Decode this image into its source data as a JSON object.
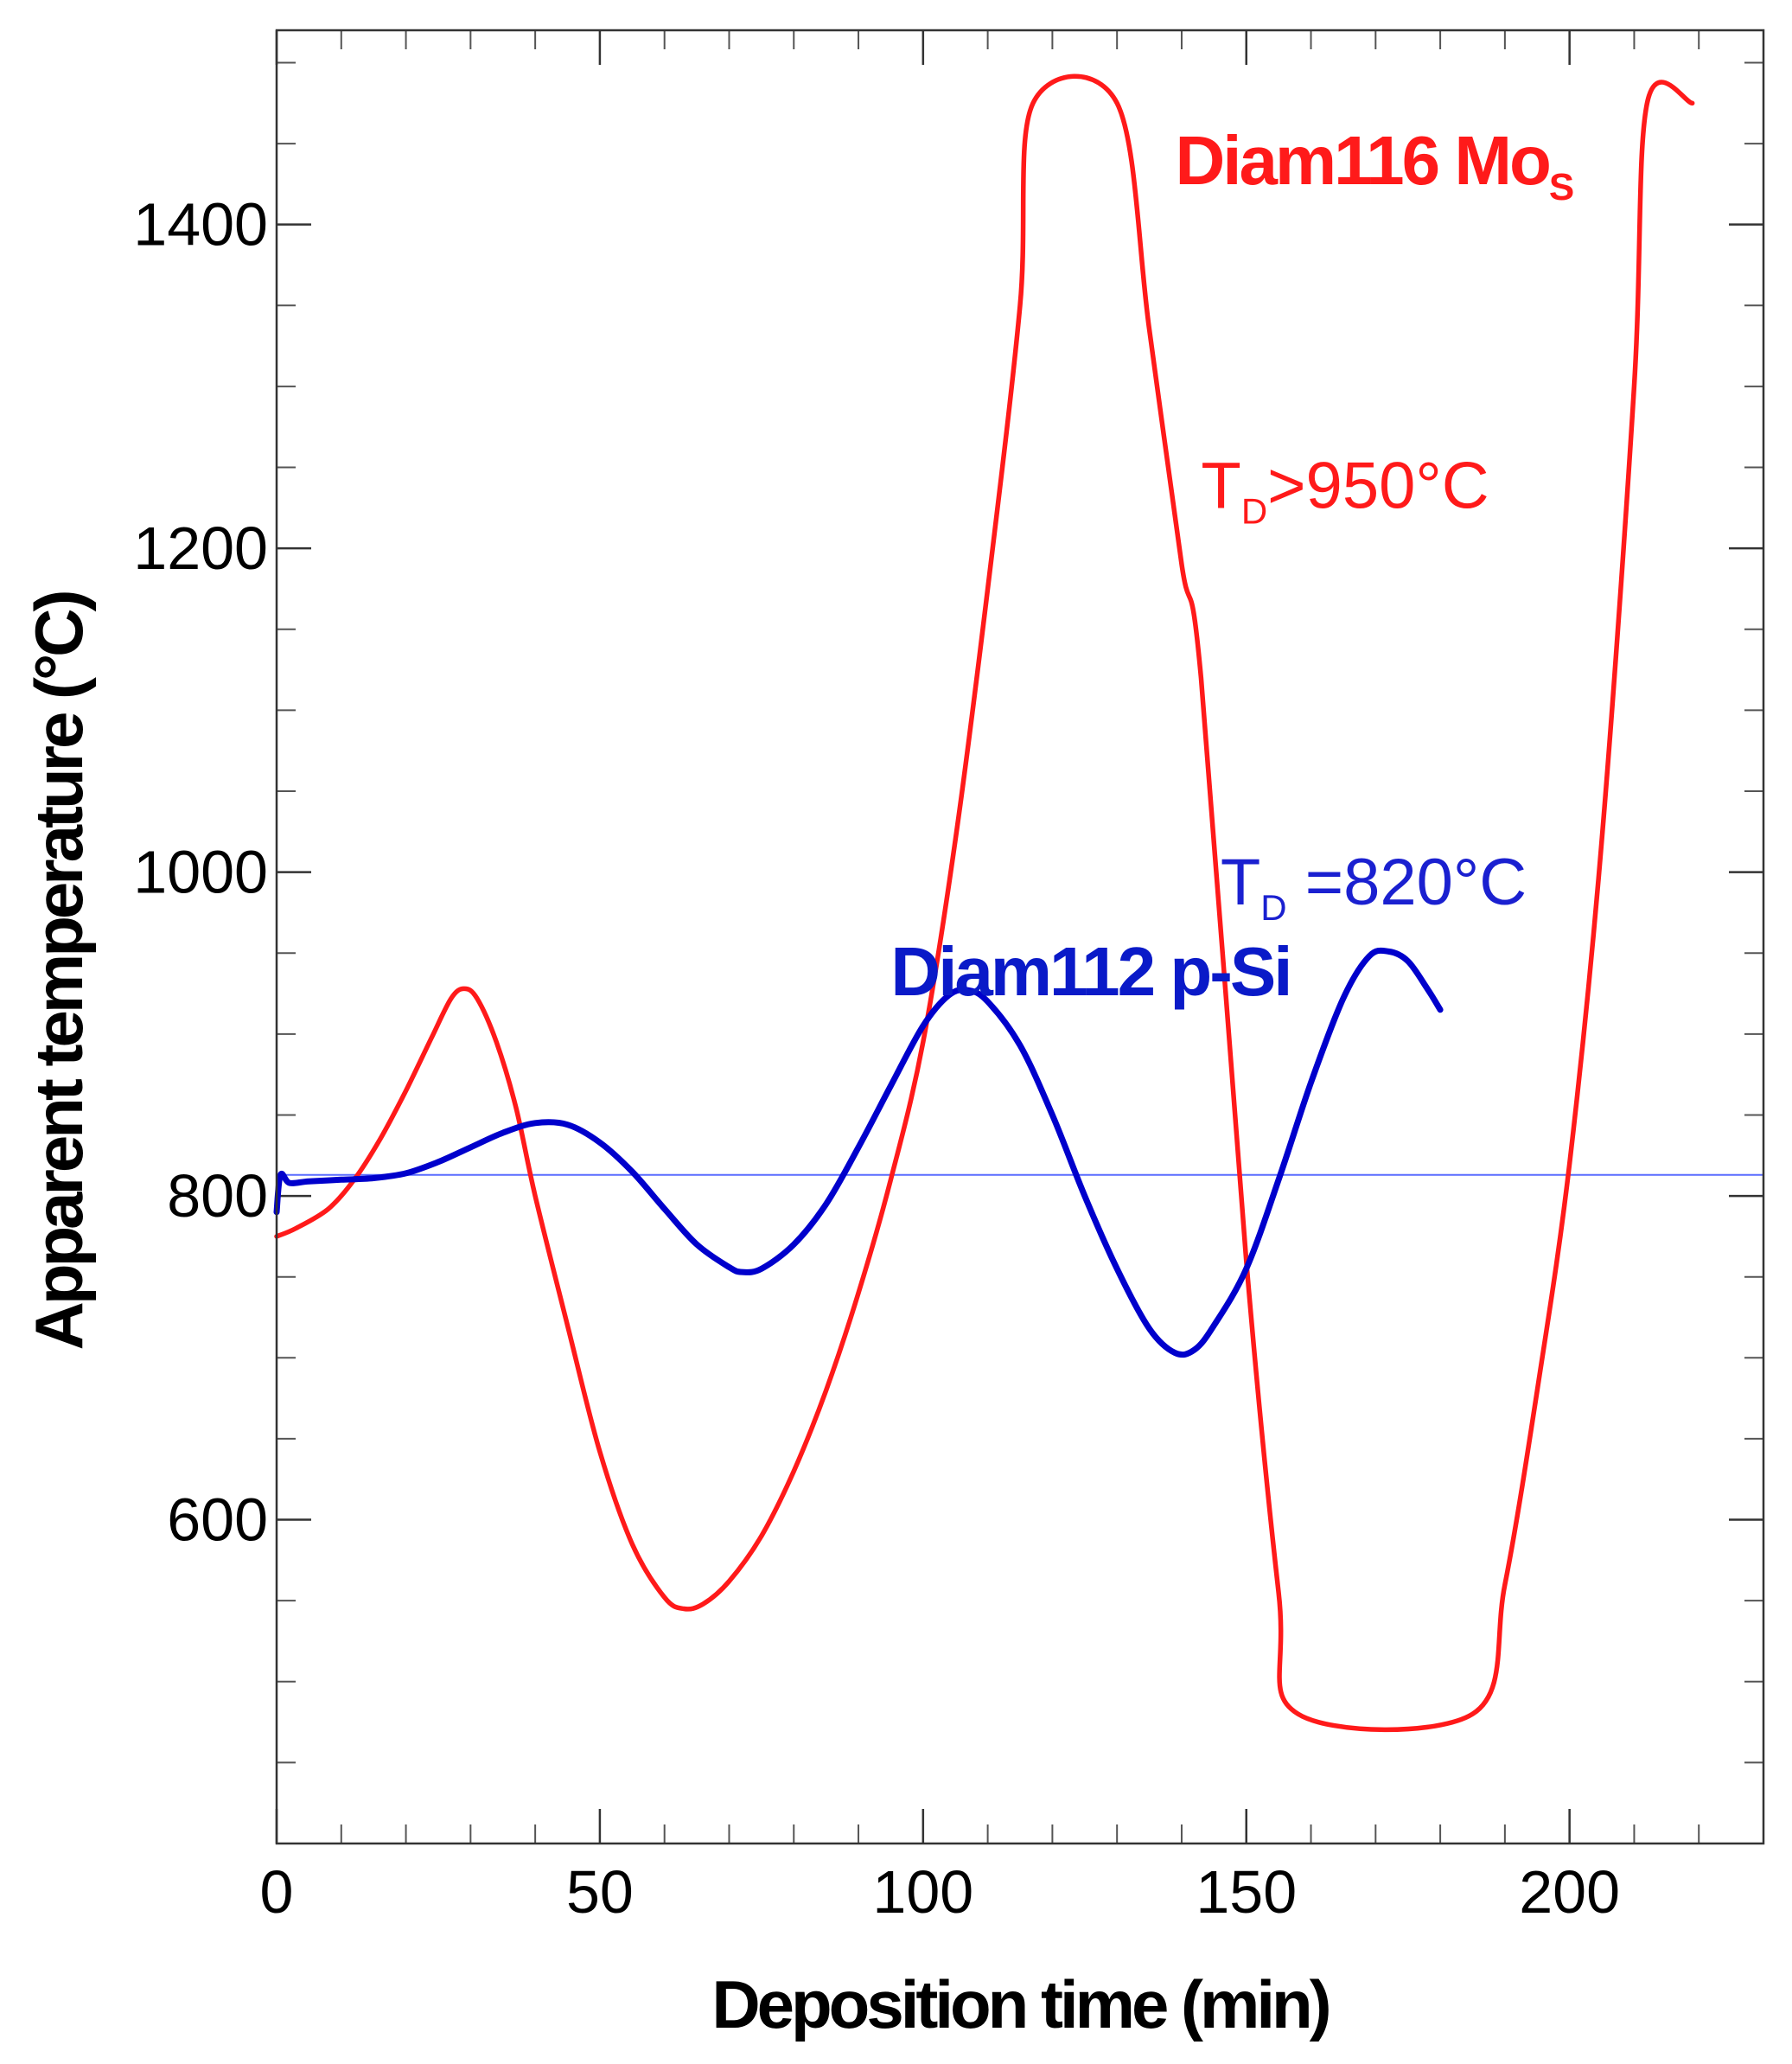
{
  "chart_data": {
    "type": "line",
    "xlabel": "Deposition time (min)",
    "ylabel": "Apparent temperature (°C)",
    "xlim": [
      0,
      230
    ],
    "ylim": [
      400,
      1520
    ],
    "xticks": [
      0,
      50,
      100,
      150,
      200
    ],
    "yticks": [
      600,
      800,
      1000,
      1200,
      1400
    ],
    "x_minor_step": 10,
    "y_minor_step": 50,
    "grid": false,
    "series": [
      {
        "name": "Diam112 p-Si",
        "color": "#0000cc",
        "points": [
          [
            0,
            790
          ],
          [
            0.6,
            813
          ],
          [
            2,
            808
          ],
          [
            5,
            809
          ],
          [
            10,
            810
          ],
          [
            15,
            811
          ],
          [
            20,
            814
          ],
          [
            25,
            821
          ],
          [
            30,
            830
          ],
          [
            35,
            839
          ],
          [
            40,
            845
          ],
          [
            45,
            844
          ],
          [
            50,
            833
          ],
          [
            55,
            815
          ],
          [
            60,
            792
          ],
          [
            65,
            770
          ],
          [
            70,
            756
          ],
          [
            72,
            753
          ],
          [
            75,
            755
          ],
          [
            80,
            770
          ],
          [
            85,
            795
          ],
          [
            90,
            830
          ],
          [
            95,
            868
          ],
          [
            100,
            905
          ],
          [
            104,
            924
          ],
          [
            107,
            927
          ],
          [
            110,
            920
          ],
          [
            115,
            893
          ],
          [
            120,
            850
          ],
          [
            125,
            800
          ],
          [
            130,
            755
          ],
          [
            135,
            718
          ],
          [
            139,
            703
          ],
          [
            142,
            705
          ],
          [
            145,
            720
          ],
          [
            150,
            755
          ],
          [
            155,
            810
          ],
          [
            160,
            870
          ],
          [
            165,
            922
          ],
          [
            169,
            948
          ],
          [
            172,
            951
          ],
          [
            175,
            945
          ],
          [
            178,
            928
          ],
          [
            180,
            915
          ]
        ]
      },
      {
        "name": "Diam116 Mo_S",
        "color": "#ff1a1a",
        "points": [
          [
            0,
            775
          ],
          [
            3,
            780
          ],
          [
            8,
            792
          ],
          [
            12,
            810
          ],
          [
            16,
            835
          ],
          [
            20,
            865
          ],
          [
            24,
            898
          ],
          [
            27,
            922
          ],
          [
            29,
            928
          ],
          [
            31,
            922
          ],
          [
            34,
            895
          ],
          [
            37,
            855
          ],
          [
            40,
            800
          ],
          [
            45,
            720
          ],
          [
            50,
            642
          ],
          [
            55,
            585
          ],
          [
            60,
            552
          ],
          [
            63,
            545
          ],
          [
            66,
            548
          ],
          [
            70,
            562
          ],
          [
            75,
            590
          ],
          [
            80,
            630
          ],
          [
            85,
            680
          ],
          [
            90,
            740
          ],
          [
            95,
            810
          ],
          [
            100,
            895
          ],
          [
            105,
            1020
          ],
          [
            110,
            1175
          ],
          [
            115,
            1350
          ],
          [
            117,
            1475
          ],
          [
            130,
            1475
          ],
          [
            135,
            1335
          ],
          [
            140,
            1190
          ],
          [
            143,
            1120
          ],
          [
            150,
            760
          ],
          [
            155,
            555
          ],
          [
            158,
            480
          ],
          [
            185,
            480
          ],
          [
            190,
            560
          ],
          [
            195,
            680
          ],
          [
            200,
            820
          ],
          [
            205,
            1020
          ],
          [
            210,
            1300
          ],
          [
            212,
            1475
          ],
          [
            219,
            1475
          ]
        ]
      }
    ],
    "reference_line": {
      "y": 813,
      "color": "#5a6cff"
    },
    "annotations": [
      {
        "text": "Diam112 p-Si",
        "x": 95,
        "y": 924,
        "color": "#0a1ac8",
        "style": "bold"
      },
      {
        "text": "T",
        "sub": "D",
        "rest": " =820°C",
        "x": 146,
        "y": 980,
        "color": "#1a20d0",
        "style": "normal"
      },
      {
        "text": "Diam116 Mo",
        "sub": "S",
        "x": 139,
        "y": 1425,
        "color": "#ff1a1a",
        "style": "bold"
      },
      {
        "text": "T",
        "sub": "D",
        "rest": ">950°C",
        "x": 143,
        "y": 1225,
        "color": "#ff1a1a",
        "style": "normal"
      }
    ]
  }
}
